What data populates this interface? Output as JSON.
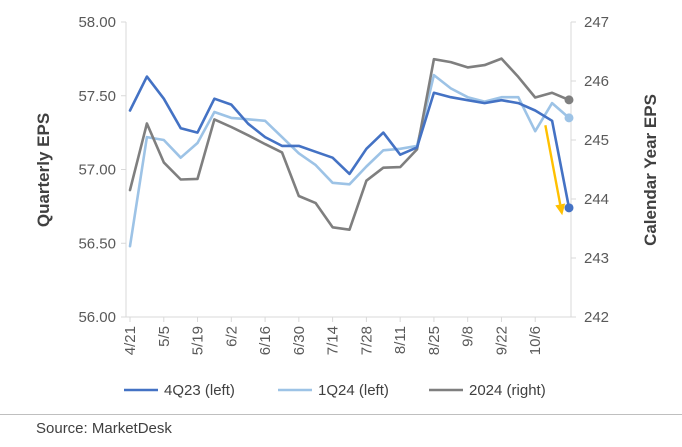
{
  "chart_data": {
    "type": "line",
    "categories": [
      "4/21",
      "4/28",
      "5/5",
      "5/12",
      "5/19",
      "5/26",
      "6/2",
      "6/9",
      "6/16",
      "6/23",
      "6/30",
      "7/7",
      "7/14",
      "7/21",
      "7/28",
      "8/4",
      "8/11",
      "8/18",
      "8/25",
      "9/1",
      "9/8",
      "9/15",
      "9/22",
      "9/29",
      "10/6",
      "10/13",
      "10/20"
    ],
    "x_tick_labels": [
      "4/21",
      "5/5",
      "5/19",
      "6/2",
      "6/16",
      "6/30",
      "7/14",
      "7/28",
      "8/11",
      "8/25",
      "9/8",
      "9/22",
      "10/6"
    ],
    "series": [
      {
        "name": "4Q23 (left)",
        "axis": "left",
        "color": "#4472C4",
        "values": [
          57.4,
          57.63,
          57.48,
          57.28,
          57.25,
          57.48,
          57.44,
          57.31,
          57.22,
          57.16,
          57.16,
          57.12,
          57.08,
          56.97,
          57.14,
          57.25,
          57.1,
          57.15,
          57.52,
          57.49,
          57.47,
          57.45,
          57.47,
          57.45,
          57.4,
          57.33,
          56.74
        ]
      },
      {
        "name": "1Q24 (left)",
        "axis": "left",
        "color": "#9DC3E6",
        "values": [
          56.48,
          57.22,
          57.2,
          57.08,
          57.18,
          57.39,
          57.35,
          57.34,
          57.33,
          57.22,
          57.11,
          57.03,
          56.91,
          56.9,
          57.02,
          57.13,
          57.14,
          57.16,
          57.64,
          57.55,
          57.49,
          57.46,
          57.49,
          57.49,
          57.26,
          57.45,
          57.35
        ]
      },
      {
        "name": "2024 (right)",
        "axis": "right",
        "color": "#7F7F7F",
        "values": [
          244.15,
          245.28,
          244.62,
          244.33,
          244.34,
          245.35,
          245.22,
          245.08,
          244.93,
          244.79,
          244.05,
          243.93,
          243.52,
          243.48,
          244.31,
          244.53,
          244.54,
          244.84,
          246.37,
          246.32,
          246.23,
          246.27,
          246.38,
          246.07,
          245.72,
          245.8,
          245.68
        ]
      }
    ],
    "end_markers": [
      {
        "series": "4Q23 (left)",
        "value": 56.74
      },
      {
        "series": "1Q24 (left)",
        "value": 57.35
      },
      {
        "series": "2024 (right)",
        "value": 245.68
      }
    ],
    "arrow": {
      "color": "#FFC000",
      "from_index": 24.6,
      "from_value_left": 57.3,
      "to_index": 25.6,
      "to_value_left": 56.69
    },
    "y_left": {
      "label": "Quarterly EPS",
      "ylim": [
        56.0,
        58.0
      ],
      "ticks": [
        "56.00",
        "56.50",
        "57.00",
        "57.50",
        "58.00"
      ]
    },
    "y_right": {
      "label": "Calendar Year EPS",
      "ylim": [
        242,
        247
      ],
      "ticks": [
        "242",
        "243",
        "244",
        "245",
        "246",
        "247"
      ]
    },
    "legend_position": "bottom",
    "grid": false
  },
  "footer": {
    "source": "Source: MarketDesk"
  }
}
